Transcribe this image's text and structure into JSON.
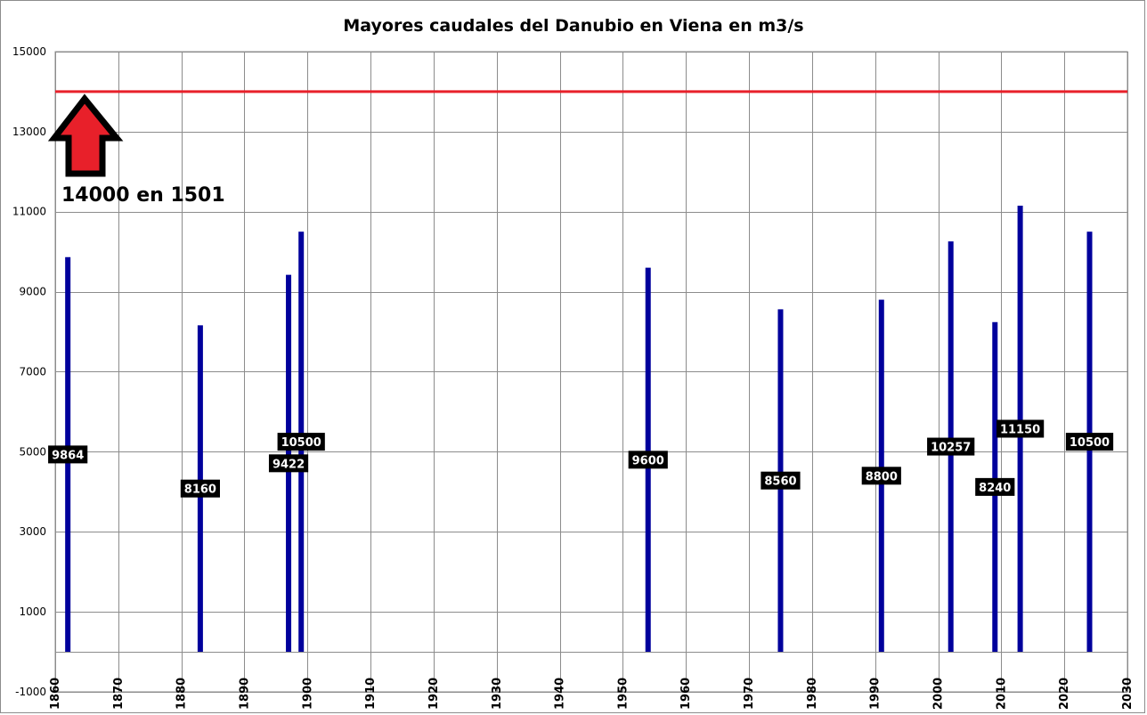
{
  "chart_data": {
    "type": "bar",
    "title": "Mayores caudales del Danubio en Viena en m3/s",
    "xlabel": "",
    "ylabel": "",
    "xlim": [
      1860,
      2030
    ],
    "ylim": [
      -1000,
      15000
    ],
    "x_ticks": [
      1860,
      1870,
      1880,
      1890,
      1900,
      1910,
      1920,
      1930,
      1940,
      1950,
      1960,
      1970,
      1980,
      1990,
      2000,
      2010,
      2020,
      2030
    ],
    "y_ticks": [
      -1000,
      1000,
      3000,
      5000,
      7000,
      9000,
      11000,
      13000,
      15000
    ],
    "y_gridlines": [
      -1000,
      0,
      1000,
      3000,
      5000,
      7000,
      9000,
      11000,
      13000,
      15000
    ],
    "grid": true,
    "bar_color": "#00009c",
    "series": [
      {
        "points": [
          {
            "x": 1862,
            "y": 9864,
            "label": "9864"
          },
          {
            "x": 1883,
            "y": 8160,
            "label": "8160"
          },
          {
            "x": 1897,
            "y": 9422,
            "label": "9422"
          },
          {
            "x": 1899,
            "y": 10500,
            "label": "10500"
          },
          {
            "x": 1954,
            "y": 9600,
            "label": "9600"
          },
          {
            "x": 1975,
            "y": 8560,
            "label": "8560"
          },
          {
            "x": 1991,
            "y": 8800,
            "label": "8800"
          },
          {
            "x": 2002,
            "y": 10257,
            "label": "10257"
          },
          {
            "x": 2009,
            "y": 8240,
            "label": "8240"
          },
          {
            "x": 2013,
            "y": 11150,
            "label": "11150"
          },
          {
            "x": 2024,
            "y": 10500,
            "label": "10500"
          }
        ]
      }
    ],
    "reference_line": {
      "y": 14000,
      "color": "#e8202a"
    },
    "annotation": {
      "text": "14000 en 1501",
      "arrow_color": "#e8202a"
    }
  }
}
